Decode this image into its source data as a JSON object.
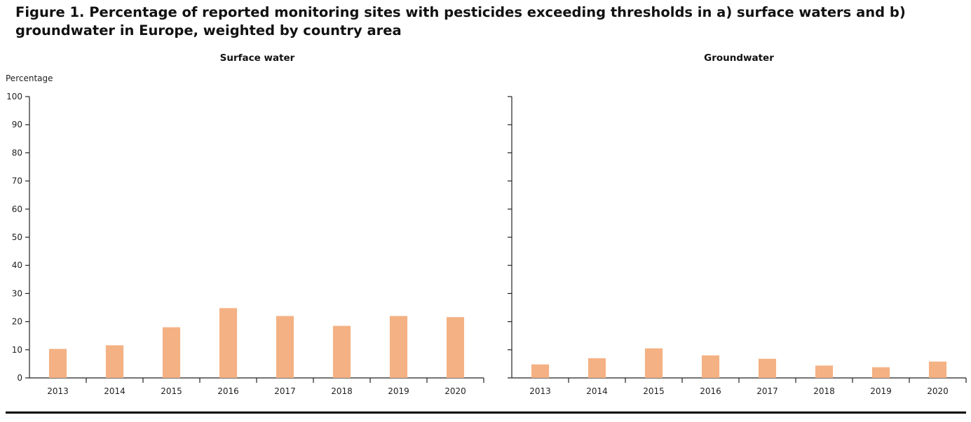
{
  "figure": {
    "title": "Figure 1. Percentage of reported monitoring sites with pesticides exceeding thresholds in a) surface waters and b) groundwater in Europe, weighted by country area"
  },
  "colors": {
    "bar": "#f4b183",
    "axis": "#222222"
  },
  "chart_data": [
    {
      "type": "bar",
      "title": "Surface water",
      "ylabel": "Percentage",
      "xlabel": "",
      "ylim": [
        0,
        100
      ],
      "yticks": [
        0,
        10,
        20,
        30,
        40,
        50,
        60,
        70,
        80,
        90,
        100
      ],
      "categories": [
        "2013",
        "2014",
        "2015",
        "2016",
        "2017",
        "2018",
        "2019",
        "2020"
      ],
      "values": [
        10.3,
        11.6,
        18,
        24.8,
        22,
        18.5,
        22,
        21.6
      ],
      "grid": false
    },
    {
      "type": "bar",
      "title": "Groundwater",
      "ylabel": "",
      "xlabel": "",
      "ylim": [
        0,
        100
      ],
      "yticks": [
        0,
        10,
        20,
        30,
        40,
        50,
        60,
        70,
        80,
        90,
        100
      ],
      "categories": [
        "2013",
        "2014",
        "2015",
        "2016",
        "2017",
        "2018",
        "2019",
        "2020"
      ],
      "values": [
        4.8,
        7,
        10.5,
        8,
        6.8,
        4.4,
        3.8,
        5.8
      ],
      "grid": false
    }
  ]
}
